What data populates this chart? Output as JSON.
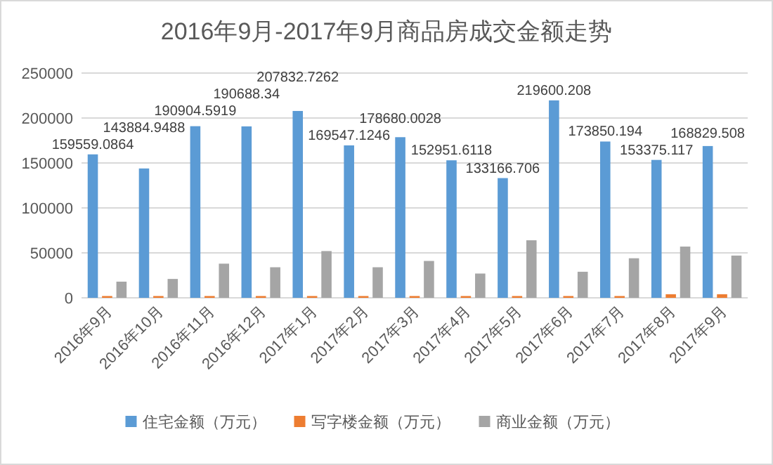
{
  "chart_data": {
    "type": "bar",
    "title": "2016年9月-2017年9月商品房成交金额走势",
    "categories": [
      "2016年9月",
      "2016年10月",
      "2016年11月",
      "2016年12月",
      "2017年1月",
      "2017年2月",
      "2017年3月",
      "2017年4月",
      "2017年5月",
      "2017年6月",
      "2017年7月",
      "2017年8月",
      "2017年9月"
    ],
    "series": [
      {
        "name": "住宅金额（万元）",
        "color": "#5b9bd5",
        "values": [
          159559.0864,
          143884.9488,
          190904.5919,
          190688.34,
          207832.7262,
          169547.1246,
          178680.0028,
          152951.6118,
          133166.706,
          219600.208,
          173850.194,
          153375.117,
          168829.508
        ],
        "value_labels": [
          "159559.0864",
          "143884.9488",
          "190904.5919",
          "190688.34",
          "207832.7262",
          "169547.1246",
          "178680.0028",
          "152951.6118",
          "133166.706",
          "219600.208",
          "173850.194",
          "153375.117",
          "168829.508"
        ]
      },
      {
        "name": "写字楼金额（万元）",
        "color": "#ed7d31",
        "values": [
          2000,
          2000,
          2000,
          2000,
          2000,
          2000,
          2000,
          2000,
          2000,
          2000,
          2000,
          4000,
          4000
        ]
      },
      {
        "name": "商业金额（万元）",
        "color": "#a5a5a5",
        "values": [
          18000,
          21000,
          38000,
          34000,
          52000,
          34000,
          41000,
          27000,
          64000,
          29000,
          44000,
          57000,
          47000
        ]
      }
    ],
    "ylim": [
      0,
      250000
    ],
    "yticks": [
      0,
      50000,
      100000,
      150000,
      200000,
      250000
    ],
    "grid": "y",
    "legend": "bottom"
  }
}
